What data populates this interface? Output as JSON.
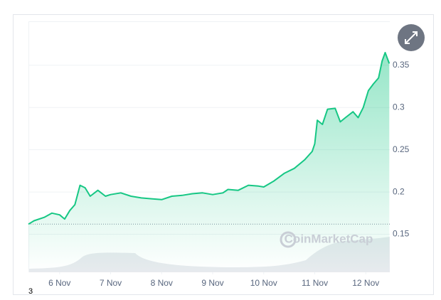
{
  "chart_data": {
    "type": "line",
    "watermark": "CoinMarketCap",
    "annotation": "3",
    "xlim": [
      5.39,
      12.47
    ],
    "xticks": [
      {
        "value": 6,
        "label": "6 Nov"
      },
      {
        "value": 7,
        "label": "7 Nov"
      },
      {
        "value": 8,
        "label": "8 Nov"
      },
      {
        "value": 9,
        "label": "9 Nov"
      },
      {
        "value": 10,
        "label": "10 Nov"
      },
      {
        "value": 11,
        "label": "11 Nov"
      },
      {
        "value": 12,
        "label": "12 Nov"
      }
    ],
    "ylim": [
      0.105,
      0.402
    ],
    "yticks": [
      0.15,
      0.2,
      0.25,
      0.3,
      0.35
    ],
    "grid": true,
    "reference_line": 0.162,
    "series": [
      {
        "color": "#16c784",
        "x": [
          5.39,
          5.5,
          5.7,
          5.85,
          6.0,
          6.1,
          6.2,
          6.3,
          6.4,
          6.5,
          6.6,
          6.75,
          6.9,
          7.0,
          7.2,
          7.4,
          7.6,
          7.8,
          8.0,
          8.2,
          8.4,
          8.6,
          8.8,
          9.0,
          9.2,
          9.3,
          9.5,
          9.7,
          9.9,
          10.0,
          10.2,
          10.4,
          10.6,
          10.8,
          10.95,
          11.0,
          11.05,
          11.15,
          11.25,
          11.4,
          11.5,
          11.6,
          11.75,
          11.85,
          11.95,
          12.05,
          12.15,
          12.25,
          12.32,
          12.38,
          12.46
        ],
        "values": [
          0.162,
          0.166,
          0.17,
          0.175,
          0.173,
          0.168,
          0.178,
          0.185,
          0.208,
          0.205,
          0.195,
          0.202,
          0.195,
          0.197,
          0.199,
          0.195,
          0.193,
          0.192,
          0.191,
          0.195,
          0.196,
          0.198,
          0.199,
          0.197,
          0.199,
          0.203,
          0.202,
          0.208,
          0.207,
          0.206,
          0.213,
          0.222,
          0.228,
          0.238,
          0.248,
          0.257,
          0.285,
          0.28,
          0.298,
          0.299,
          0.283,
          0.288,
          0.295,
          0.288,
          0.3,
          0.32,
          0.328,
          0.335,
          0.355,
          0.365,
          0.352
        ]
      }
    ]
  }
}
